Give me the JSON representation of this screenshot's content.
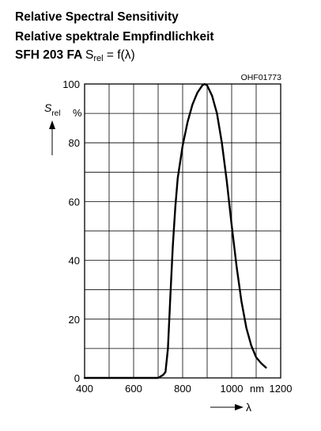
{
  "title": {
    "line1": "Relative Spectral Sensitivity",
    "line2": "Relative spektrale Empfindlichkeit",
    "line3_part": "SFH 203 FA",
    "line3_formula_s": "S",
    "line3_formula_sub": "rel",
    "line3_formula_rest": " = f(λ)"
  },
  "figure_code": "OHF01773",
  "chart_data": {
    "type": "line",
    "title": "Relative Spectral Sensitivity / Relative spektrale Empfindlichkeit SFH 203 FA Srel = f(λ)",
    "ylabel_symbol": "S",
    "ylabel_sub": "rel",
    "yunit": "%",
    "xlabel": "λ",
    "xunit": "nm",
    "xlim": [
      400,
      1200
    ],
    "ylim": [
      0,
      100
    ],
    "xticks": [
      "400",
      "600",
      "800",
      "1000",
      "1200"
    ],
    "yticks": [
      "0",
      "20",
      "40",
      "60",
      "80",
      "100"
    ],
    "grid": true,
    "series": [
      {
        "values": [
          [
            400,
            0
          ],
          [
            500,
            0
          ],
          [
            600,
            0
          ],
          [
            700,
            0
          ],
          [
            720,
            1
          ],
          [
            730,
            2
          ],
          [
            740,
            10
          ],
          [
            750,
            28
          ],
          [
            760,
            45
          ],
          [
            770,
            58
          ],
          [
            780,
            68
          ],
          [
            800,
            79
          ],
          [
            820,
            87
          ],
          [
            840,
            93
          ],
          [
            860,
            97
          ],
          [
            880,
            99.5
          ],
          [
            890,
            100
          ],
          [
            900,
            99.5
          ],
          [
            920,
            96
          ],
          [
            940,
            90
          ],
          [
            960,
            80
          ],
          [
            980,
            67
          ],
          [
            1000,
            52
          ],
          [
            1020,
            38
          ],
          [
            1040,
            26
          ],
          [
            1060,
            17
          ],
          [
            1080,
            11
          ],
          [
            1100,
            7
          ],
          [
            1120,
            5
          ],
          [
            1140,
            3.5
          ]
        ]
      }
    ]
  }
}
